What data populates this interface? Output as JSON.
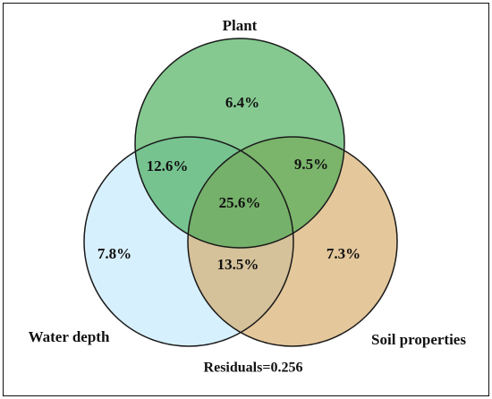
{
  "diagram": {
    "type": "venn",
    "sets": {
      "plant": {
        "label": "Plant",
        "color": "#3aa84e",
        "opacity": 0.62
      },
      "water": {
        "label": "Water depth",
        "color": "#bfe6fb",
        "opacity": 0.62
      },
      "soil": {
        "label": "Soil properties",
        "color": "#d4a55e",
        "opacity": 0.62
      }
    },
    "regions": {
      "plant_only": "6.4%",
      "plant_water": "12.6%",
      "plant_soil": "9.5%",
      "all_three": "25.6%",
      "water_only": "7.8%",
      "water_soil": "13.5%",
      "soil_only": "7.3%"
    },
    "residuals": "Residuals=0.256"
  }
}
